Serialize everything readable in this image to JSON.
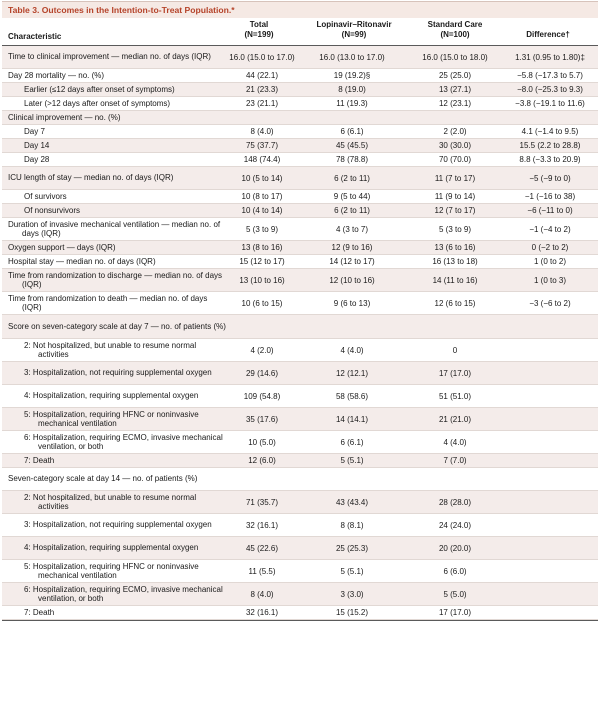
{
  "table": {
    "title": "Table 3. Outcomes in the Intention-to-Treat Population.*",
    "headers": {
      "characteristic": "Characteristic",
      "total": "Total\n(N=199)",
      "lopinavir": "Lopinavir–Ritonavir\n(N=99)",
      "standard": "Standard Care\n(N=100)",
      "difference": "Difference†"
    },
    "rows": [
      {
        "label": "Time to clinical improvement — median no. of days (IQR)",
        "total": "16.0 (15.0 to 17.0)",
        "lr": "16.0 (13.0 to 17.0)",
        "sc": "16.0 (15.0 to 18.0)",
        "diff": "1.31 (0.95 to 1.80)‡"
      },
      {
        "label": "Day 28 mortality — no. (%)",
        "total": "44 (22.1)",
        "lr": "19 (19.2)§",
        "sc": "25 (25.0)",
        "diff": "−5.8 (−17.3 to 5.7)"
      },
      {
        "label": "Earlier (≤12 days after onset of symptoms)",
        "total": "21 (23.3)",
        "lr": "8 (19.0)",
        "sc": "13 (27.1)",
        "diff": "−8.0 (−25.3 to 9.3)"
      },
      {
        "label": "Later (>12 days after onset of symptoms)",
        "total": "23 (21.1)",
        "lr": "11 (19.3)",
        "sc": "12 (23.1)",
        "diff": "−3.8 (−19.1 to 11.6)"
      },
      {
        "label": "Clinical improvement — no. (%)",
        "total": "",
        "lr": "",
        "sc": "",
        "diff": ""
      },
      {
        "label": "Day 7",
        "total": "8 (4.0)",
        "lr": "6 (6.1)",
        "sc": "2 (2.0)",
        "diff": "4.1 (−1.4 to 9.5)"
      },
      {
        "label": "Day 14",
        "total": "75 (37.7)",
        "lr": "45 (45.5)",
        "sc": "30 (30.0)",
        "diff": "15.5 (2.2 to 28.8)"
      },
      {
        "label": "Day 28",
        "total": "148 (74.4)",
        "lr": "78 (78.8)",
        "sc": "70 (70.0)",
        "diff": "8.8 (−3.3 to 20.9)"
      },
      {
        "label": "ICU length of stay — median no. of days (IQR)",
        "total": "10 (5 to 14)",
        "lr": "6 (2 to 11)",
        "sc": "11 (7 to 17)",
        "diff": "−5 (−9 to 0)"
      },
      {
        "label": "Of survivors",
        "total": "10 (8 to 17)",
        "lr": "9 (5 to 44)",
        "sc": "11 (9 to 14)",
        "diff": "−1 (−16 to 38)"
      },
      {
        "label": "Of nonsurvivors",
        "total": "10 (4 to 14)",
        "lr": "6 (2 to 11)",
        "sc": "12 (7 to 17)",
        "diff": "−6 (−11 to 0)"
      },
      {
        "label": "Duration of invasive mechanical ventilation — median no. of days (IQR)",
        "total": "5 (3 to 9)",
        "lr": "4 (3 to 7)",
        "sc": "5 (3 to 9)",
        "diff": "−1 (−4 to 2)"
      },
      {
        "label": "Oxygen support — days (IQR)",
        "total": "13 (8 to 16)",
        "lr": "12 (9 to 16)",
        "sc": "13 (6 to 16)",
        "diff": "0 (−2 to 2)"
      },
      {
        "label": "Hospital stay — median no. of days (IQR)",
        "total": "15 (12 to 17)",
        "lr": "14 (12 to 17)",
        "sc": "16 (13 to 18)",
        "diff": "1 (0 to 2)"
      },
      {
        "label": "Time from randomization to discharge — median no. of days (IQR)",
        "total": "13 (10 to 16)",
        "lr": "12 (10 to 16)",
        "sc": "14 (11 to 16)",
        "diff": "1 (0 to 3)"
      },
      {
        "label": "Time from randomization to death — median no. of days (IQR)",
        "total": "10 (6 to 15)",
        "lr": "9 (6 to 13)",
        "sc": "12 (6 to 15)",
        "diff": "−3 (−6 to 2)"
      },
      {
        "label": "Score on seven-category scale at day 7 — no. of patients (%)",
        "total": "",
        "lr": "",
        "sc": "",
        "diff": ""
      },
      {
        "label": "2: Not hospitalized, but unable to resume normal activities",
        "total": "4 (2.0)",
        "lr": "4 (4.0)",
        "sc": "0",
        "diff": ""
      },
      {
        "label": "3: Hospitalization, not requiring supplemental oxygen",
        "total": "29 (14.6)",
        "lr": "12 (12.1)",
        "sc": "17 (17.0)",
        "diff": ""
      },
      {
        "label": "4: Hospitalization, requiring supplemental oxygen",
        "total": "109 (54.8)",
        "lr": "58 (58.6)",
        "sc": "51 (51.0)",
        "diff": ""
      },
      {
        "label": "5: Hospitalization, requiring HFNC or noninvasive mechanical ventilation",
        "total": "35 (17.6)",
        "lr": "14 (14.1)",
        "sc": "21 (21.0)",
        "diff": ""
      },
      {
        "label": "6: Hospitalization, requiring ECMO, invasive mechanical ventilation, or both",
        "total": "10 (5.0)",
        "lr": "6 (6.1)",
        "sc": "4 (4.0)",
        "diff": ""
      },
      {
        "label": "7: Death",
        "total": "12 (6.0)",
        "lr": "5 (5.1)",
        "sc": "7 (7.0)",
        "diff": ""
      },
      {
        "label": "Seven-category scale at day 14 — no. of patients (%)",
        "total": "",
        "lr": "",
        "sc": "",
        "diff": ""
      },
      {
        "label": "2: Not hospitalized, but unable to resume normal activities",
        "total": "71 (35.7)",
        "lr": "43 (43.4)",
        "sc": "28 (28.0)",
        "diff": ""
      },
      {
        "label": "3: Hospitalization, not requiring supplemental oxygen",
        "total": "32 (16.1)",
        "lr": "8 (8.1)",
        "sc": "24 (24.0)",
        "diff": ""
      },
      {
        "label": "4: Hospitalization, requiring supplemental oxygen",
        "total": "45 (22.6)",
        "lr": "25 (25.3)",
        "sc": "20 (20.0)",
        "diff": ""
      },
      {
        "label": "5: Hospitalization, requiring HFNC or noninvasive mechanical ventilation",
        "total": "11 (5.5)",
        "lr": "5 (5.1)",
        "sc": "6 (6.0)",
        "diff": ""
      },
      {
        "label": "6: Hospitalization, requiring ECMO, invasive mechanical ventilation, or both",
        "total": "8 (4.0)",
        "lr": "3 (3.0)",
        "sc": "5 (5.0)",
        "diff": ""
      },
      {
        "label": "7: Death",
        "total": "32 (16.1)",
        "lr": "15 (15.2)",
        "sc": "17 (17.0)",
        "diff": ""
      }
    ]
  }
}
